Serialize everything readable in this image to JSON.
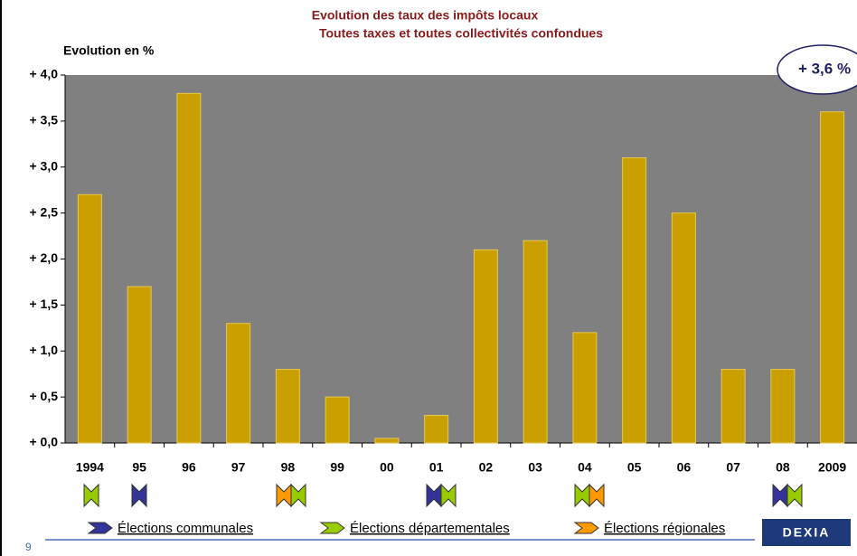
{
  "chart_data": {
    "type": "bar",
    "title": [
      "Evolution des taux des impôts locaux",
      "Toutes taxes et toutes collectivités confondues"
    ],
    "y_label": "Evolution en %",
    "annotation": "+ 3,6 %",
    "categories": [
      "1994",
      "95",
      "96",
      "97",
      "98",
      "99",
      "00",
      "01",
      "02",
      "03",
      "04",
      "05",
      "06",
      "07",
      "08",
      "2009"
    ],
    "values": [
      2.7,
      1.7,
      3.8,
      1.3,
      0.8,
      0.5,
      0.05,
      0.3,
      2.1,
      2.2,
      1.2,
      3.1,
      2.5,
      0.8,
      0.8,
      3.6
    ],
    "color": "#c9a000",
    "ylim": [
      0,
      4
    ],
    "yticks": [
      {
        "value": 0,
        "label": "+ 0,0"
      },
      {
        "value": 0.5,
        "label": "+ 0,5"
      },
      {
        "value": 1,
        "label": "+ 1,0"
      },
      {
        "value": 1.5,
        "label": "+ 1,5"
      },
      {
        "value": 2,
        "label": "+ 2,0"
      },
      {
        "value": 2.5,
        "label": "+ 2,5"
      },
      {
        "value": 3,
        "label": "+ 3,0"
      },
      {
        "value": 3.5,
        "label": "+ 3,5"
      },
      {
        "value": 4,
        "label": "+ 4,0"
      }
    ],
    "legend": [
      {
        "name": "Élections communales",
        "color": "#333399"
      },
      {
        "name": "Élections départementales",
        "color": "#99cc00"
      },
      {
        "name": "Élections régionales",
        "color": "#ff9900"
      }
    ],
    "grid": false
  },
  "footer": {
    "page": "9",
    "logo": "DEXIA"
  }
}
